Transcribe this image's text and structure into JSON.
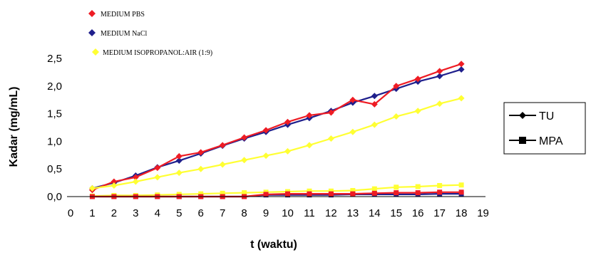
{
  "chart_data": {
    "type": "line",
    "xlabel": "t (waktu)",
    "ylabel": "Kadar (mg/mL)",
    "xlim": [
      0,
      19
    ],
    "ylim": [
      0,
      2.5
    ],
    "x_ticks": [
      "0",
      "1",
      "2",
      "3",
      "4",
      "5",
      "6",
      "7",
      "8",
      "9",
      "10",
      "11",
      "12",
      "13",
      "14",
      "15",
      "16",
      "17",
      "18",
      "19"
    ],
    "y_ticks": [
      "0,0",
      "0,5",
      "1,0",
      "1,5",
      "2,0",
      "2,5"
    ],
    "x": [
      1,
      2,
      3,
      4,
      5,
      6,
      7,
      8,
      9,
      10,
      11,
      12,
      13,
      14,
      15,
      16,
      17,
      18
    ],
    "medium_legend": [
      {
        "label": "MEDIUM PBS",
        "color": "#ee1c24"
      },
      {
        "label": "MEDIUM NaCl",
        "color": "#1f1f8c"
      },
      {
        "label": "MEDIUM ISOPROPANOL:AIR (1:9)",
        "color": "#ffff33"
      }
    ],
    "marker_legend": [
      {
        "label": "TU",
        "marker": "diamond"
      },
      {
        "label": "MPA",
        "marker": "square"
      }
    ],
    "series": [
      {
        "medium": "MEDIUM NaCl",
        "compound": "TU",
        "color": "#1f1f8c",
        "marker": "diamond",
        "values": [
          0.15,
          0.25,
          0.38,
          0.53,
          0.65,
          0.78,
          0.92,
          1.05,
          1.17,
          1.3,
          1.42,
          1.55,
          1.7,
          1.82,
          1.95,
          2.08,
          2.18,
          2.3
        ]
      },
      {
        "medium": "MEDIUM PBS",
        "compound": "TU",
        "color": "#ee1c24",
        "marker": "diamond",
        "values": [
          0.12,
          0.27,
          0.35,
          0.52,
          0.73,
          0.8,
          0.93,
          1.07,
          1.2,
          1.35,
          1.47,
          1.52,
          1.75,
          1.67,
          2.0,
          2.13,
          2.27,
          2.4
        ]
      },
      {
        "medium": "MEDIUM ISOPROPANOL:AIR (1:9)",
        "compound": "TU",
        "color": "#ffff33",
        "marker": "diamond",
        "values": [
          0.15,
          0.2,
          0.27,
          0.35,
          0.43,
          0.5,
          0.58,
          0.66,
          0.74,
          0.82,
          0.93,
          1.05,
          1.17,
          1.3,
          1.45,
          1.55,
          1.68,
          1.78
        ]
      },
      {
        "medium": "MEDIUM ISOPROPANOL:AIR (1:9)",
        "compound": "MPA",
        "color": "#ffff33",
        "marker": "square",
        "values": [
          0.01,
          0.02,
          0.02,
          0.03,
          0.04,
          0.05,
          0.06,
          0.07,
          0.08,
          0.09,
          0.1,
          0.1,
          0.11,
          0.14,
          0.17,
          0.18,
          0.2,
          0.21
        ]
      },
      {
        "medium": "MEDIUM NaCl",
        "compound": "MPA",
        "color": "#1f1f8c",
        "marker": "square",
        "values": [
          0.0,
          0.0,
          0.0,
          0.0,
          0.0,
          0.0,
          0.0,
          0.0,
          0.03,
          0.03,
          0.03,
          0.03,
          0.04,
          0.04,
          0.04,
          0.04,
          0.05,
          0.05
        ]
      },
      {
        "medium": "MEDIUM PBS",
        "compound": "MPA",
        "color": "#ee1c24",
        "marker": "square",
        "values": [
          0.0,
          0.0,
          0.0,
          0.0,
          0.0,
          0.0,
          0.0,
          0.0,
          0.04,
          0.05,
          0.05,
          0.05,
          0.05,
          0.06,
          0.07,
          0.07,
          0.08,
          0.08
        ]
      }
    ]
  }
}
